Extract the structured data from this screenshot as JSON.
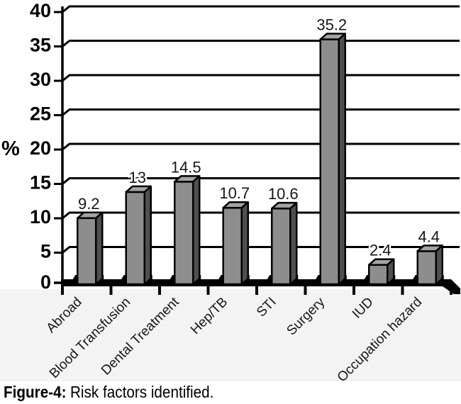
{
  "figure_caption": {
    "label": "Figure-4:",
    "text": "Risk factors identified."
  },
  "chart_data": {
    "type": "bar",
    "title": "",
    "xlabel": "",
    "ylabel": "%",
    "categories": [
      "Abroad",
      "Blood Transfusion",
      "Dental Treatment",
      "Hep/TB",
      "STI",
      "Surgery",
      "IUD",
      "Occupation hazard"
    ],
    "values": [
      9.2,
      13,
      14.5,
      10.7,
      10.6,
      35.2,
      2.4,
      4.4
    ],
    "ylim": [
      0,
      40
    ],
    "yticks": [
      0,
      5,
      10,
      15,
      20,
      25,
      30,
      35,
      40
    ],
    "grid": true,
    "legend": false,
    "style": "3d-bars",
    "colors": {
      "bar_front": "#8d8d8d",
      "bar_top": "#a3a3a3",
      "bar_side": "#4f4f4f",
      "outline": "#000000",
      "band_bg": "#f3f3f3"
    }
  }
}
